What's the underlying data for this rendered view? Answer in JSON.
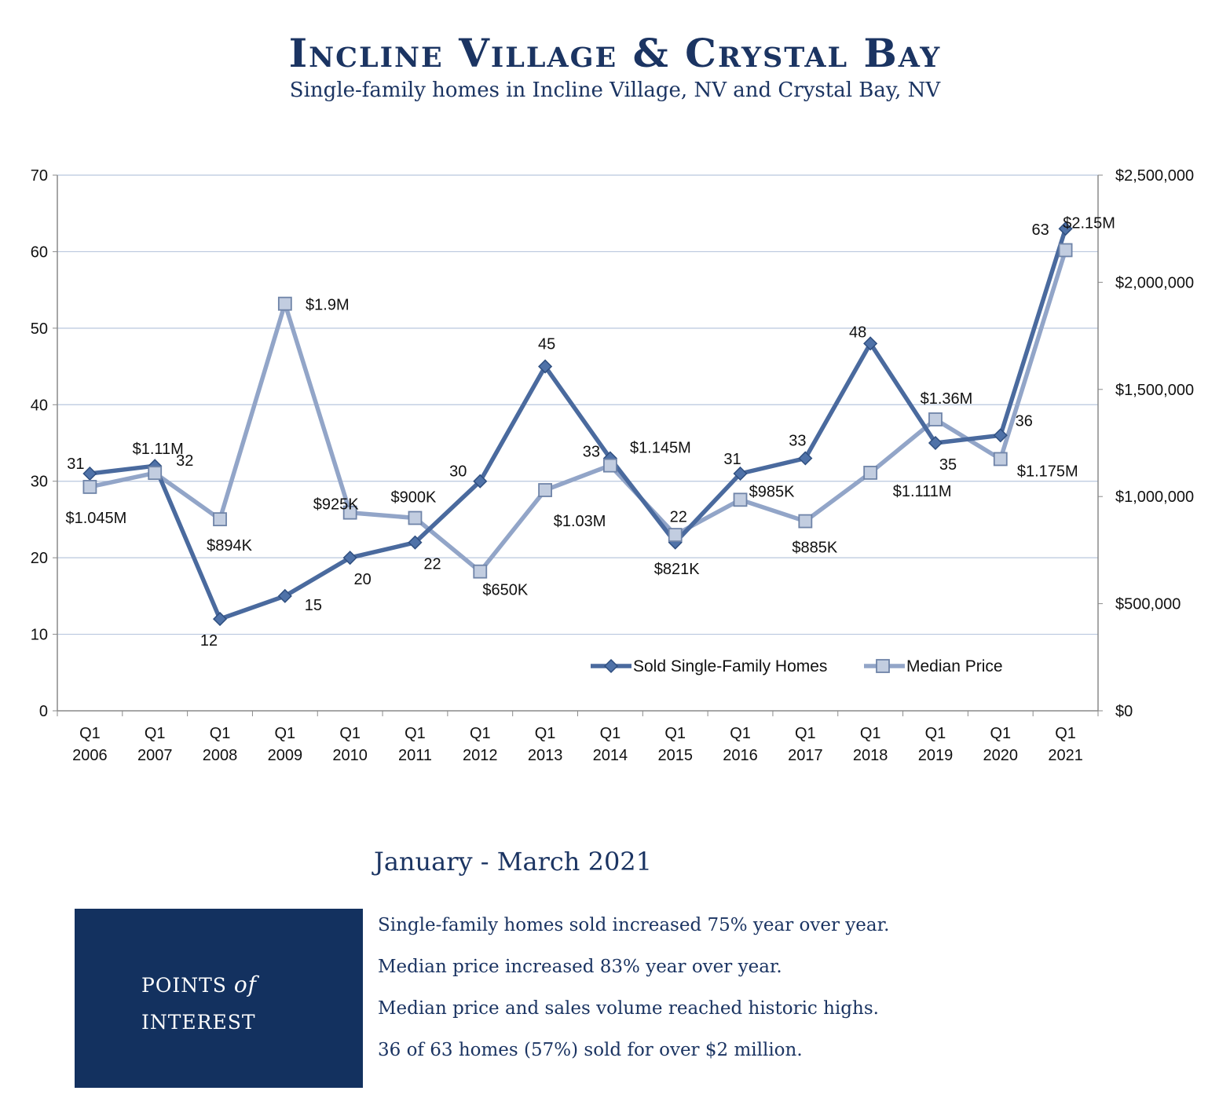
{
  "header": {
    "title": "Incline Village & Crystal Bay",
    "subtitle": "Single-family homes in Incline Village, NV and Crystal Bay, NV"
  },
  "chart_data": {
    "type": "line",
    "categories": [
      "Q1\n2006",
      "Q1\n2007",
      "Q1\n2008",
      "Q1\n2009",
      "Q1\n2010",
      "Q1\n2011",
      "Q1\n2012",
      "Q1\n2013",
      "Q1\n2014",
      "Q1\n2015",
      "Q1\n2016",
      "Q1\n2017",
      "Q1\n2018",
      "Q1\n2019",
      "Q1\n2020",
      "Q1\n2021"
    ],
    "y_left": {
      "range": [
        0,
        70
      ],
      "ticks": [
        "0",
        "10",
        "20",
        "30",
        "40",
        "50",
        "60",
        "70"
      ]
    },
    "y_right": {
      "range": [
        0,
        2500000
      ],
      "ticks": [
        "$0",
        "$500,000",
        "$1,000,000",
        "$1,500,000",
        "$2,000,000",
        "$2,500,000"
      ]
    },
    "grid": true,
    "legend_position": "bottom-right",
    "series": [
      {
        "name": "Sold Single-Family Homes",
        "axis": "left",
        "color": "#4a6a9e",
        "values": [
          31,
          32,
          12,
          15,
          20,
          22,
          30,
          45,
          33,
          22,
          31,
          33,
          48,
          35,
          36,
          63
        ],
        "labels": [
          "31",
          "32",
          "12",
          "15",
          "20",
          "22",
          "30",
          "45",
          "33",
          "22",
          "31",
          "33",
          "48",
          "35",
          "36",
          "63"
        ]
      },
      {
        "name": "Median Price",
        "axis": "right",
        "color": "#92a5c8",
        "values": [
          1045000,
          1110000,
          894000,
          1900000,
          925000,
          900000,
          650000,
          1030000,
          1145000,
          821000,
          985000,
          885000,
          1111000,
          1360000,
          1175000,
          2150000
        ],
        "labels": [
          "$1.045M",
          "$1.11M",
          "$894K",
          "$1.9M",
          "$925K",
          "$900K",
          "$650K",
          "$1.03M",
          "$1.145M",
          "$821K",
          "$985K",
          "$885K",
          "$1.111M",
          "$1.36M",
          "$1.175M",
          "$2.15M"
        ]
      }
    ]
  },
  "period_label": "January - March 2021",
  "points_of_interest": {
    "heading_line1_prefix": "POINTS ",
    "heading_of": "of",
    "heading_line2": "INTEREST",
    "items": [
      "Single-family homes sold increased 75% year over year.",
      "Median price increased 83% year over year.",
      "Median price and sales volume reached historic highs.",
      "36 of 63 homes (57%) sold for over $2 million."
    ]
  }
}
